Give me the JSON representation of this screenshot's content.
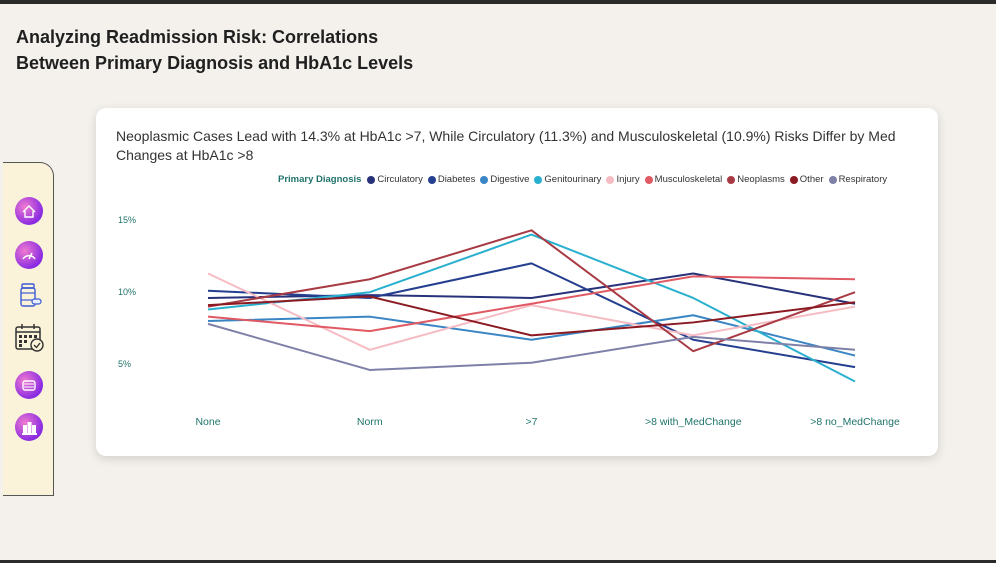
{
  "page": {
    "title_line1": "Analyzing Readmission Risk: Correlations",
    "title_line2": "Between Primary Diagnosis and HbA1c Levels"
  },
  "sidebar": {
    "icons": [
      "home-icon",
      "speedometer-icon",
      "medicine-bottle-icon",
      "calendar-check-icon",
      "face-mask-icon",
      "bottles-icon"
    ]
  },
  "colors": {
    "page_background": "#f4f1ec",
    "sidebar_background": "#fbf3d9",
    "legend_title": "#20736b",
    "axis_labels": "#20736b"
  },
  "chart_data": {
    "type": "line",
    "title": "Neoplasmic Cases Lead with 14.3% at HbA1c >7, While Circulatory (11.3%) and Musculoskeletal (10.9%) Risks Differ by Med Changes at HbA1c >8",
    "legend_title": "Primary Diagnosis",
    "legend_position": "top-right",
    "categories": [
      "None",
      "Norm",
      ">7",
      ">8 with_MedChange",
      ">8 no_MedChange"
    ],
    "y_ticks": [
      "5%",
      "10%",
      "15%"
    ],
    "y_tick_values": [
      5,
      10,
      15
    ],
    "ylim": [
      3,
      15.5
    ],
    "grid": false,
    "series": [
      {
        "name": "Circulatory",
        "color": "#28327a",
        "values": [
          9.6,
          9.8,
          9.6,
          11.3,
          9.2
        ]
      },
      {
        "name": "Diabetes",
        "color": "#243f8f",
        "values": [
          10.1,
          9.6,
          12.0,
          6.7,
          4.8
        ]
      },
      {
        "name": "Digestive",
        "color": "#3a85c3",
        "values": [
          8.0,
          8.3,
          6.7,
          8.4,
          5.6
        ]
      },
      {
        "name": "Genitourinary",
        "color": "#2ab0cf",
        "values": [
          8.8,
          10.0,
          14.0,
          9.6,
          3.8
        ]
      },
      {
        "name": "Injury",
        "color": "#f6bcc4",
        "values": [
          11.3,
          6.0,
          9.1,
          7.0,
          9.0
        ]
      },
      {
        "name": "Musculoskeletal",
        "color": "#e05a64",
        "values": [
          8.3,
          7.3,
          9.2,
          11.1,
          10.9
        ]
      },
      {
        "name": "Neoplasms",
        "color": "#a83a44",
        "values": [
          9.0,
          10.9,
          14.3,
          5.9,
          10.0
        ]
      },
      {
        "name": "Other",
        "color": "#8b1a22",
        "values": [
          9.1,
          9.7,
          7.0,
          7.9,
          9.3
        ]
      },
      {
        "name": "Respiratory",
        "color": "#7e80a8",
        "values": [
          7.8,
          4.6,
          5.1,
          6.9,
          6.0
        ]
      }
    ]
  }
}
